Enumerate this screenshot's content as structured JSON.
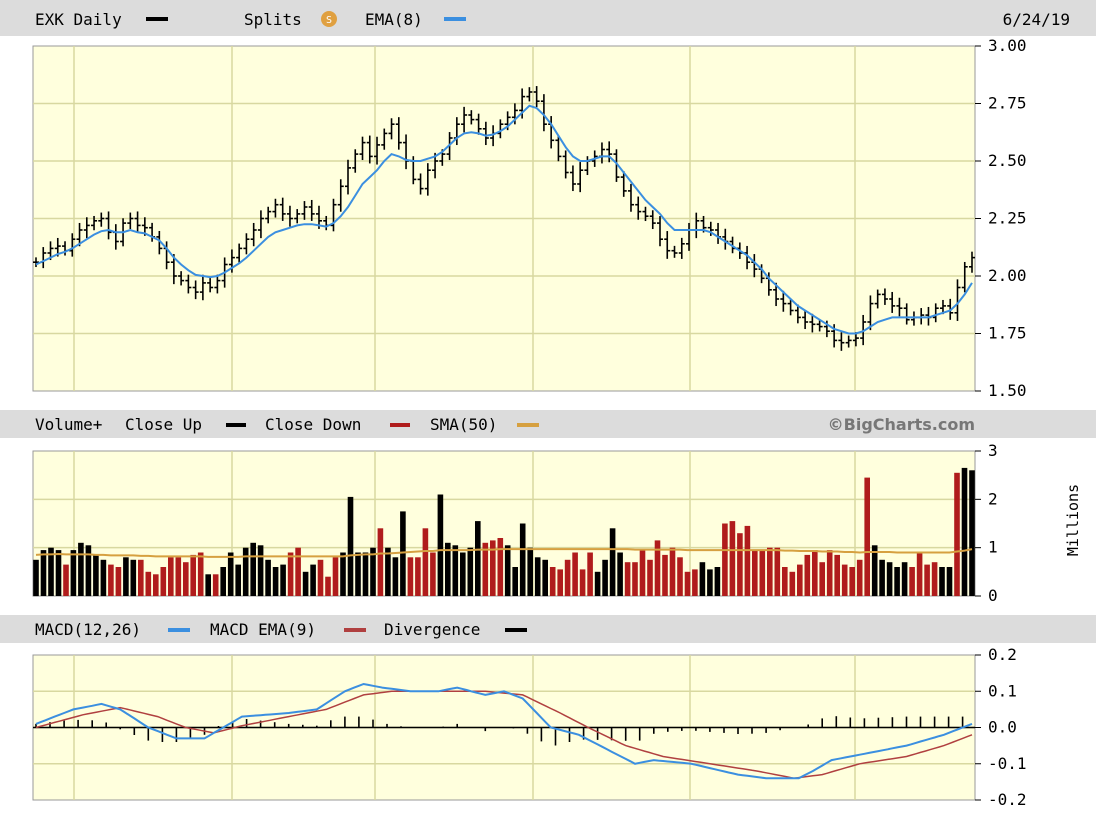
{
  "header": {
    "symbol_label": "EXK Daily",
    "splits_label": "Splits",
    "splits_badge": "S",
    "ema_label": "EMA(8)",
    "date": "6/24/19"
  },
  "volume_header": {
    "label": "Volume+",
    "close_up_label": "Close Up",
    "close_down_label": "Close Down",
    "sma_label": "SMA(50)",
    "watermark": "©BigCharts.com"
  },
  "macd_header": {
    "macd_label": "MACD(12,26)",
    "signal_label": "MACD EMA(9)",
    "divergence_label": "Divergence"
  },
  "colors": {
    "panel_bg": "#ffffdd",
    "header_bg": "#dcdcdc",
    "grid": "#d8d8a0",
    "up": "#000000",
    "down": "#b01c1c",
    "ema": "#3b8fe0",
    "sma": "#d6a040",
    "signal": "#b04040"
  },
  "chart_data": [
    {
      "type": "ohlc",
      "title": "EXK Daily",
      "x_label": "",
      "y_label": "",
      "ylim": [
        1.5,
        3.0
      ],
      "y_ticks": [
        "3.00",
        "2.75",
        "2.50",
        "2.25",
        "2.00",
        "1.75",
        "1.50"
      ],
      "y_tick_values": [
        3.0,
        2.75,
        2.5,
        2.25,
        2.0,
        1.75,
        1.5
      ],
      "grid": true,
      "closes": [
        2.06,
        2.1,
        2.12,
        2.13,
        2.11,
        2.16,
        2.2,
        2.22,
        2.24,
        2.25,
        2.19,
        2.15,
        2.23,
        2.25,
        2.22,
        2.21,
        2.17,
        2.12,
        2.06,
        2.0,
        1.98,
        1.95,
        1.93,
        1.97,
        1.95,
        1.98,
        2.05,
        2.08,
        2.12,
        2.16,
        2.2,
        2.25,
        2.28,
        2.31,
        2.27,
        2.25,
        2.27,
        2.3,
        2.27,
        2.24,
        2.22,
        2.31,
        2.39,
        2.47,
        2.53,
        2.58,
        2.52,
        2.57,
        2.62,
        2.66,
        2.58,
        2.5,
        2.42,
        2.38,
        2.46,
        2.5,
        2.53,
        2.6,
        2.66,
        2.7,
        2.68,
        2.64,
        2.6,
        2.62,
        2.66,
        2.69,
        2.72,
        2.78,
        2.8,
        2.76,
        2.66,
        2.59,
        2.52,
        2.45,
        2.4,
        2.46,
        2.5,
        2.52,
        2.55,
        2.53,
        2.43,
        2.37,
        2.31,
        2.28,
        2.26,
        2.23,
        2.16,
        2.11,
        2.1,
        2.14,
        2.2,
        2.24,
        2.21,
        2.2,
        2.17,
        2.15,
        2.12,
        2.1,
        2.06,
        2.03,
        1.99,
        1.94,
        1.9,
        1.88,
        1.85,
        1.82,
        1.8,
        1.79,
        1.78,
        1.76,
        1.72,
        1.71,
        1.72,
        1.73,
        1.8,
        1.88,
        1.92,
        1.9,
        1.87,
        1.86,
        1.81,
        1.82,
        1.83,
        1.82,
        1.86,
        1.87,
        1.84,
        1.95,
        2.04,
        2.08
      ],
      "ema8": [
        2.05,
        2.065,
        2.08,
        2.095,
        2.105,
        2.12,
        2.14,
        2.16,
        2.18,
        2.195,
        2.2,
        2.19,
        2.19,
        2.2,
        2.19,
        2.185,
        2.17,
        2.155,
        2.12,
        2.08,
        2.05,
        2.025,
        2.005,
        2.0,
        1.995,
        2.0,
        2.015,
        2.035,
        2.055,
        2.08,
        2.11,
        2.14,
        2.17,
        2.19,
        2.2,
        2.21,
        2.22,
        2.225,
        2.225,
        2.22,
        2.215,
        2.23,
        2.26,
        2.3,
        2.35,
        2.4,
        2.43,
        2.46,
        2.5,
        2.53,
        2.52,
        2.505,
        2.5,
        2.5,
        2.51,
        2.52,
        2.54,
        2.57,
        2.6,
        2.62,
        2.625,
        2.62,
        2.61,
        2.615,
        2.63,
        2.65,
        2.68,
        2.71,
        2.74,
        2.73,
        2.7,
        2.66,
        2.61,
        2.56,
        2.52,
        2.5,
        2.5,
        2.51,
        2.52,
        2.52,
        2.49,
        2.45,
        2.41,
        2.37,
        2.33,
        2.3,
        2.27,
        2.23,
        2.2,
        2.2,
        2.2,
        2.2,
        2.2,
        2.19,
        2.17,
        2.15,
        2.13,
        2.11,
        2.09,
        2.06,
        2.03,
        1.99,
        1.96,
        1.93,
        1.9,
        1.87,
        1.85,
        1.83,
        1.81,
        1.79,
        1.77,
        1.76,
        1.75,
        1.75,
        1.76,
        1.78,
        1.8,
        1.81,
        1.82,
        1.82,
        1.82,
        1.82,
        1.82,
        1.82,
        1.83,
        1.84,
        1.85,
        1.88,
        1.92,
        1.97
      ]
    },
    {
      "type": "bar",
      "title": "Volume+",
      "y_label": "Millions",
      "ylim": [
        0,
        3
      ],
      "y_ticks": [
        "3",
        "2",
        "1",
        "0"
      ],
      "y_tick_values": [
        3,
        2,
        1,
        0
      ],
      "grid": true,
      "series": [
        {
          "name": "Close Up",
          "color": "#000000"
        },
        {
          "name": "Close Down",
          "color": "#b01c1c"
        },
        {
          "name": "SMA(50)",
          "color": "#d6a040"
        }
      ],
      "volumes": [
        0.75,
        0.95,
        1.0,
        0.95,
        0.65,
        0.95,
        1.1,
        1.05,
        0.85,
        0.75,
        0.65,
        0.6,
        0.8,
        0.75,
        0.75,
        0.5,
        0.45,
        0.6,
        0.8,
        0.8,
        0.7,
        0.85,
        0.9,
        0.45,
        0.45,
        0.6,
        0.9,
        0.65,
        1.0,
        1.1,
        1.05,
        0.75,
        0.6,
        0.65,
        0.9,
        1.0,
        0.5,
        0.65,
        0.75,
        0.4,
        0.8,
        0.9,
        2.05,
        0.9,
        0.9,
        1.0,
        1.4,
        1.0,
        0.8,
        1.75,
        0.8,
        0.8,
        1.4,
        0.9,
        2.1,
        1.1,
        1.05,
        0.9,
        1.0,
        1.55,
        1.1,
        1.15,
        1.2,
        1.05,
        0.6,
        1.5,
        1.0,
        0.8,
        0.75,
        0.6,
        0.55,
        0.75,
        0.9,
        0.55,
        0.9,
        0.5,
        0.75,
        1.4,
        0.9,
        0.7,
        0.7,
        0.95,
        0.75,
        1.15,
        0.85,
        1.0,
        0.8,
        0.5,
        0.55,
        0.7,
        0.55,
        0.6,
        1.5,
        1.55,
        1.3,
        1.45,
        0.95,
        0.95,
        1.0,
        1.0,
        0.6,
        0.5,
        0.65,
        0.85,
        0.95,
        0.7,
        0.95,
        0.85,
        0.65,
        0.6,
        0.75,
        2.45,
        1.05,
        0.75,
        0.7,
        0.6,
        0.7,
        0.6,
        0.9,
        0.65,
        0.7,
        0.6,
        0.6,
        2.55,
        2.65,
        2.6
      ],
      "sma50": [
        0.85,
        0.86,
        0.86,
        0.87,
        0.86,
        0.86,
        0.86,
        0.86,
        0.85,
        0.85,
        0.84,
        0.84,
        0.84,
        0.84,
        0.83,
        0.83,
        0.82,
        0.82,
        0.82,
        0.82,
        0.82,
        0.82,
        0.82,
        0.81,
        0.81,
        0.81,
        0.81,
        0.81,
        0.82,
        0.82,
        0.82,
        0.82,
        0.82,
        0.82,
        0.82,
        0.82,
        0.82,
        0.82,
        0.82,
        0.82,
        0.82,
        0.82,
        0.84,
        0.85,
        0.86,
        0.86,
        0.88,
        0.88,
        0.89,
        0.9,
        0.91,
        0.92,
        0.93,
        0.93,
        0.95,
        0.95,
        0.95,
        0.95,
        0.95,
        0.96,
        0.96,
        0.96,
        0.97,
        0.97,
        0.97,
        0.97,
        0.97,
        0.97,
        0.97,
        0.97,
        0.97,
        0.97,
        0.97,
        0.97,
        0.97,
        0.97,
        0.97,
        0.97,
        0.97,
        0.97,
        0.96,
        0.96,
        0.96,
        0.96,
        0.96,
        0.96,
        0.96,
        0.95,
        0.95,
        0.95,
        0.95,
        0.95,
        0.95,
        0.95,
        0.95,
        0.95,
        0.95,
        0.95,
        0.95,
        0.95,
        0.94,
        0.94,
        0.93,
        0.93,
        0.93,
        0.92,
        0.92,
        0.92,
        0.91,
        0.91,
        0.9,
        0.91,
        0.91,
        0.91,
        0.91,
        0.9,
        0.9,
        0.9,
        0.9,
        0.9,
        0.9,
        0.9,
        0.9,
        0.92,
        0.94,
        0.97
      ]
    },
    {
      "type": "line",
      "title": "MACD(12,26)",
      "ylim": [
        -0.2,
        0.2
      ],
      "y_ticks": [
        "0.2",
        "0.1",
        "0.0",
        "-0.1",
        "-0.2"
      ],
      "y_tick_values": [
        0.2,
        0.1,
        0.0,
        -0.1,
        -0.2
      ],
      "grid": true,
      "series": [
        {
          "name": "MACD(12,26)",
          "color": "#3b8fe0"
        },
        {
          "name": "MACD EMA(9)",
          "color": "#b04040"
        },
        {
          "name": "Divergence",
          "color": "#000000"
        }
      ],
      "macd_anchors": [
        [
          0,
          0.01
        ],
        [
          8,
          0.05
        ],
        [
          14,
          0.065
        ],
        [
          18,
          0.05
        ],
        [
          24,
          0.0
        ],
        [
          30,
          -0.03
        ],
        [
          36,
          -0.03
        ],
        [
          44,
          0.03
        ],
        [
          54,
          0.04
        ],
        [
          60,
          0.05
        ],
        [
          66,
          0.1
        ],
        [
          70,
          0.12
        ],
        [
          74,
          0.11
        ],
        [
          80,
          0.1
        ],
        [
          86,
          0.1
        ],
        [
          90,
          0.11
        ],
        [
          96,
          0.09
        ],
        [
          100,
          0.1
        ],
        [
          104,
          0.08
        ],
        [
          110,
          0.0
        ],
        [
          116,
          -0.02
        ],
        [
          122,
          -0.06
        ],
        [
          128,
          -0.1
        ],
        [
          132,
          -0.09
        ],
        [
          140,
          -0.1
        ],
        [
          150,
          -0.13
        ],
        [
          156,
          -0.14
        ],
        [
          163,
          -0.14
        ],
        [
          166,
          -0.12
        ],
        [
          170,
          -0.09
        ],
        [
          178,
          -0.07
        ],
        [
          186,
          -0.05
        ],
        [
          194,
          -0.02
        ],
        [
          200,
          0.01
        ]
      ],
      "signal_anchors": [
        [
          0,
          0.0
        ],
        [
          10,
          0.035
        ],
        [
          18,
          0.055
        ],
        [
          26,
          0.03
        ],
        [
          32,
          0.0
        ],
        [
          38,
          -0.015
        ],
        [
          44,
          0.005
        ],
        [
          54,
          0.03
        ],
        [
          62,
          0.05
        ],
        [
          70,
          0.09
        ],
        [
          76,
          0.1
        ],
        [
          86,
          0.1
        ],
        [
          96,
          0.1
        ],
        [
          104,
          0.09
        ],
        [
          112,
          0.04
        ],
        [
          118,
          0.0
        ],
        [
          126,
          -0.05
        ],
        [
          134,
          -0.08
        ],
        [
          144,
          -0.1
        ],
        [
          154,
          -0.12
        ],
        [
          162,
          -0.14
        ],
        [
          168,
          -0.13
        ],
        [
          176,
          -0.1
        ],
        [
          186,
          -0.08
        ],
        [
          194,
          -0.05
        ],
        [
          200,
          -0.02
        ]
      ]
    }
  ]
}
